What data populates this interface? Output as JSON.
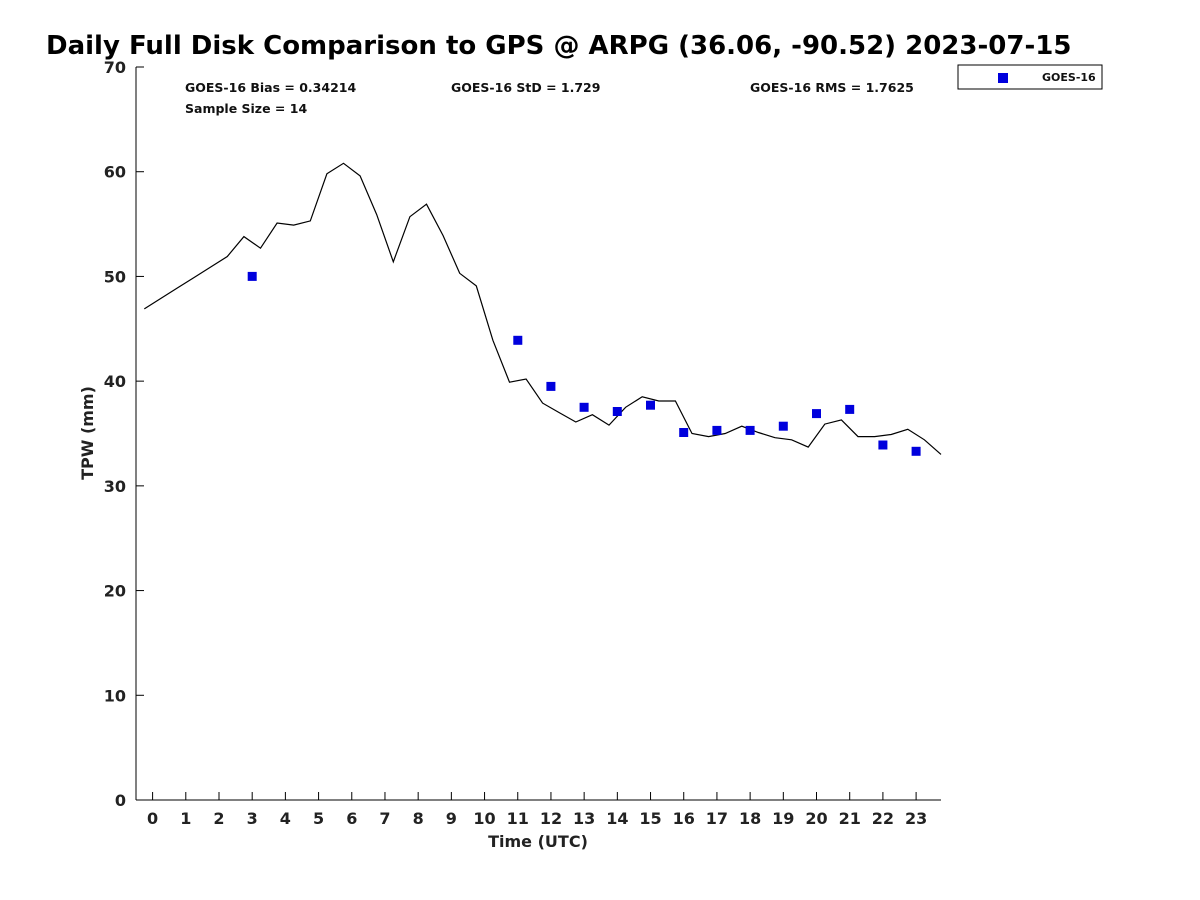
{
  "chart_data": {
    "type": "line",
    "title": "Daily Full Disk Comparison to GPS @ ARPG (36.06, -90.52) 2023-07-15",
    "xlabel": "Time (UTC)",
    "ylabel": "TPW (mm)",
    "xlim": [
      -0.5,
      23.75
    ],
    "ylim": [
      0,
      70
    ],
    "x_ticks": [
      0,
      1,
      2,
      3,
      4,
      5,
      6,
      7,
      8,
      9,
      10,
      11,
      12,
      13,
      14,
      15,
      16,
      17,
      18,
      19,
      20,
      21,
      22,
      23
    ],
    "y_ticks": [
      0,
      10,
      20,
      30,
      40,
      50,
      60,
      70
    ],
    "grid": false,
    "legend_position": "top-right-outside",
    "stats": {
      "bias": "GOES-16 Bias = 0.34214",
      "std": "GOES-16 StD = 1.729",
      "rms": "GOES-16 RMS = 1.7625",
      "sample_size": "Sample Size = 14"
    },
    "series": [
      {
        "kind": "line",
        "color": "#000000",
        "x": [
          -0.25,
          0.25,
          0.75,
          1.25,
          1.75,
          2.25,
          2.75,
          3.25,
          3.75,
          4.25,
          4.75,
          5.25,
          5.75,
          6.25,
          6.75,
          7.25,
          7.75,
          8.25,
          8.75,
          9.25,
          9.75,
          10.25,
          10.75,
          11.25,
          11.75,
          12.25,
          12.75,
          13.25,
          13.75,
          14.25,
          14.75,
          15.25,
          15.75,
          16.25,
          16.75,
          17.25,
          17.75,
          18.25,
          18.75,
          19.25,
          19.75,
          20.25,
          20.75,
          21.25,
          21.75,
          22.25,
          22.75,
          23.25,
          23.75
        ],
        "values": [
          46.9,
          47.9,
          48.9,
          49.9,
          50.9,
          51.9,
          53.8,
          52.7,
          55.1,
          54.9,
          55.3,
          59.8,
          60.8,
          59.6,
          55.9,
          51.4,
          55.7,
          56.9,
          53.9,
          50.3,
          49.1,
          43.9,
          39.9,
          40.2,
          37.9,
          37.0,
          36.1,
          36.8,
          35.8,
          37.5,
          38.5,
          38.1,
          38.1,
          35.0,
          34.7,
          35.0,
          35.7,
          35.1,
          34.6,
          34.4,
          33.7,
          35.9,
          36.3,
          34.7,
          34.7,
          34.9,
          35.4,
          34.4,
          33.0
        ]
      },
      {
        "name": "GOES-16",
        "kind": "scatter",
        "color": "#0000dd",
        "x": [
          3,
          11,
          12,
          13,
          14,
          15,
          16,
          17,
          18,
          19,
          20,
          21,
          22,
          23
        ],
        "values": [
          50.0,
          43.9,
          39.5,
          37.5,
          37.1,
          37.7,
          35.1,
          35.3,
          35.3,
          35.7,
          36.9,
          37.3,
          33.9,
          33.3
        ]
      }
    ]
  }
}
